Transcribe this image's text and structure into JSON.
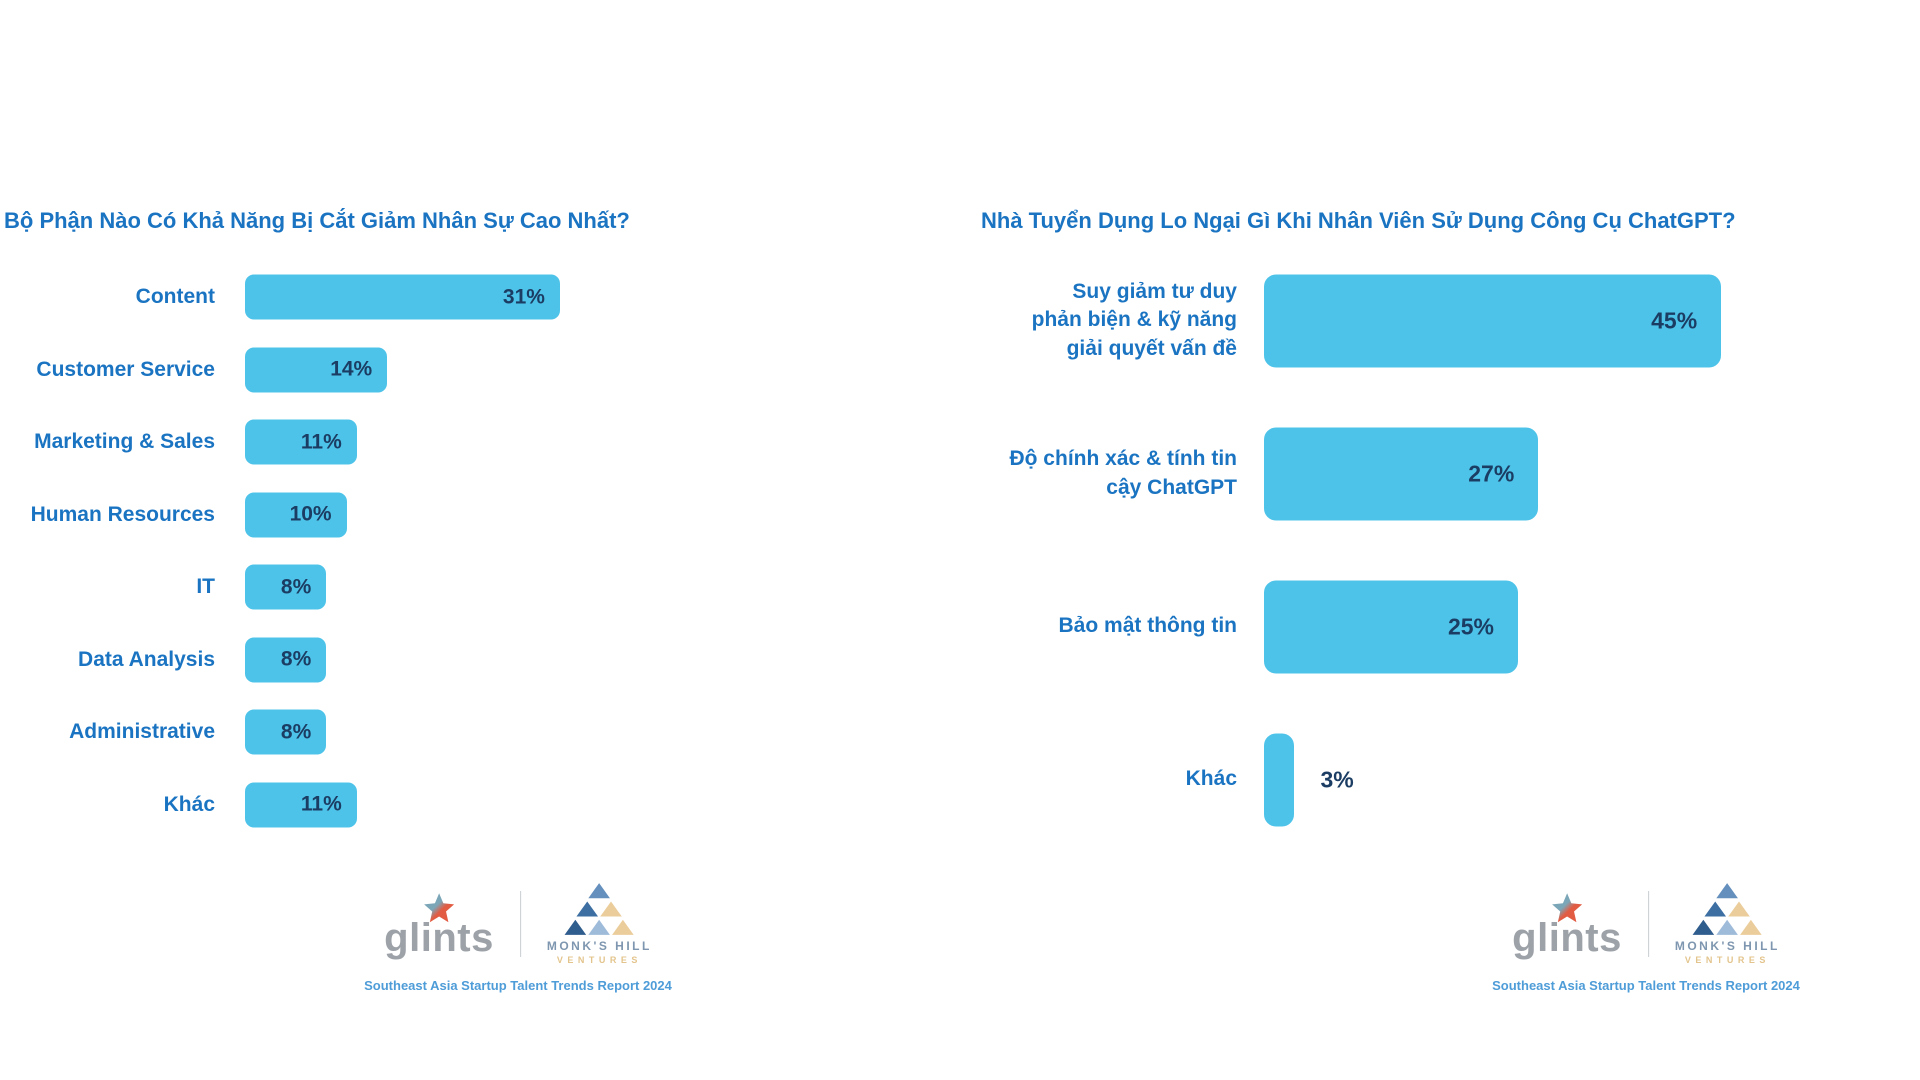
{
  "colors": {
    "bar": "#4DC3E9",
    "title": "#1B74C2",
    "label": "#1B74C2",
    "value": "#1C3D63",
    "caption": "#4E9CD8"
  },
  "icons": {
    "glints_star": "two-tone star (teal-gray to orange-red)",
    "monks_hill_mark": "pyramid of six triangles (blue and tan)"
  },
  "footer": {
    "glints_wordmark": "glints",
    "monks_hill_line1": "MONK'S HILL",
    "monks_hill_line2": "VENTURES",
    "caption": "Southeast Asia Startup Talent Trends Report 2024"
  },
  "chart_data": [
    {
      "type": "bar",
      "orientation": "horizontal",
      "title": "Bộ Phận Nào Có Khả Năng Bị Cắt Giảm Nhân Sự Cao Nhất?",
      "categories": [
        "Content",
        "Customer Service",
        "Marketing & Sales",
        "Human Resources",
        "IT",
        "Data Analysis",
        "Administrative",
        "Khác"
      ],
      "values": [
        31,
        14,
        11,
        10,
        8,
        8,
        8,
        11
      ],
      "value_suffix": "%",
      "value_label_position": "inside-right",
      "xlim": [
        0,
        100
      ],
      "grid": false,
      "legend": false
    },
    {
      "type": "bar",
      "orientation": "horizontal",
      "title": "Nhà Tuyển Dụng Lo Ngại Gì Khi Nhân Viên Sử Dụng Công Cụ ChatGPT?",
      "categories": [
        "Suy giảm tư duy\nphản biện & kỹ năng\ngiải quyết vấn đề",
        "Độ chính xác & tính tin\ncậy ChatGPT",
        "Bảo mật thông tin",
        "Khác"
      ],
      "values": [
        45,
        27,
        25,
        3
      ],
      "value_suffix": "%",
      "value_label_position": "inside-right (outside for smallest bar)",
      "xlim": [
        0,
        100
      ],
      "grid": false,
      "legend": false
    }
  ]
}
